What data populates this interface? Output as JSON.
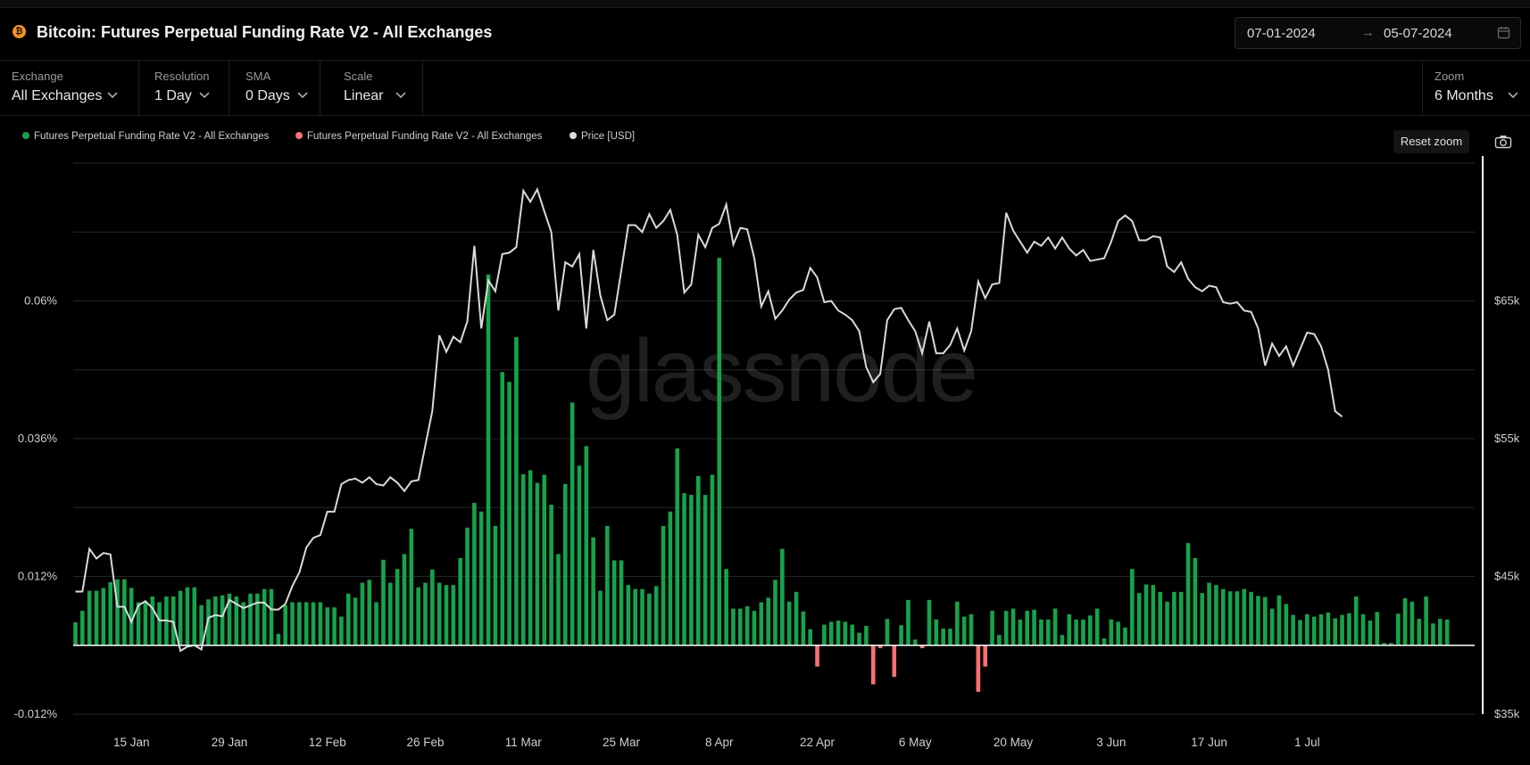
{
  "header": {
    "coin_icon_label": "₿",
    "title": "Bitcoin: Futures Perpetual Funding Rate V2 - All Exchanges",
    "date_from": "07-01-2024",
    "date_arrow": "→",
    "date_to": "05-07-2024",
    "calendar_icon": "calendar-icon"
  },
  "controls": {
    "exchange": {
      "label": "Exchange",
      "value": "All Exchanges"
    },
    "resolution": {
      "label": "Resolution",
      "value": "1 Day"
    },
    "sma": {
      "label": "SMA",
      "value": "0 Days"
    },
    "scale": {
      "label": "Scale",
      "value": "Linear"
    },
    "zoom": {
      "label": "Zoom",
      "value": "6 Months"
    }
  },
  "legend": [
    {
      "label": "Futures Perpetual Funding Rate V2 - All Exchanges",
      "color": "#16a34a"
    },
    {
      "label": "Futures Perpetual Funding Rate V2 - All Exchanges",
      "color": "#f87171"
    },
    {
      "label": "Price [USD]",
      "color": "#d9d9d9"
    }
  ],
  "toolbar": {
    "reset_zoom": "Reset zoom",
    "camera_icon": "camera-icon"
  },
  "watermark": "glassnode",
  "chart_data": {
    "type": "bar",
    "start_date": "2024-01-07",
    "x_tick_labels": [
      "15 Jan",
      "29 Jan",
      "12 Feb",
      "26 Feb",
      "11 Mar",
      "25 Mar",
      "8 Apr",
      "22 Apr",
      "6 May",
      "20 May",
      "3 Jun",
      "17 Jun",
      "1 Jul"
    ],
    "y_left": {
      "ticks": [
        -0.012,
        0.012,
        0.036,
        0.06
      ],
      "tick_labels": [
        "-0.012%",
        "0.012%",
        "0.036%",
        "0.06%"
      ],
      "range": [
        -0.012,
        0.084
      ]
    },
    "y_right": {
      "ticks": [
        35000,
        45000,
        55000,
        65000
      ],
      "tick_labels": [
        "$35k",
        "$45k",
        "$55k",
        "$65k"
      ],
      "range": [
        35000,
        75000
      ]
    },
    "grid": true,
    "series": [
      {
        "name": "Futures Perpetual Funding Rate V2 - All Exchanges",
        "axis": "left",
        "positive_color": "#16a34a",
        "negative_color": "#f87171",
        "values": [
          0.004,
          0.006,
          0.0095,
          0.0095,
          0.01,
          0.011,
          0.0115,
          0.0115,
          0.01,
          0.0075,
          0.0075,
          0.0085,
          0.0075,
          0.0085,
          0.0085,
          0.0095,
          0.0101,
          0.0101,
          0.007,
          0.008,
          0.0085,
          0.0087,
          0.009,
          0.0085,
          0.0075,
          0.009,
          0.009,
          0.0098,
          0.0098,
          0.002,
          0.007,
          0.0075,
          0.0075,
          0.0075,
          0.0075,
          0.0075,
          0.0066,
          0.0066,
          0.005,
          0.009,
          0.0083,
          0.0109,
          0.0114,
          0.0075,
          0.0149,
          0.0109,
          0.0133,
          0.0159,
          0.0203,
          0.0101,
          0.0109,
          0.0132,
          0.0109,
          0.0105,
          0.0105,
          0.0152,
          0.0205,
          0.0248,
          0.0233,
          0.0646,
          0.0208,
          0.0476,
          0.0459,
          0.0537,
          0.0298,
          0.0305,
          0.0283,
          0.0297,
          0.0245,
          0.0159,
          0.0281,
          0.0423,
          0.0313,
          0.0347,
          0.0188,
          0.0095,
          0.0208,
          0.0148,
          0.0148,
          0.0105,
          0.0098,
          0.0098,
          0.009,
          0.0103,
          0.0208,
          0.0233,
          0.0343,
          0.0265,
          0.0262,
          0.0295,
          0.0262,
          0.0297,
          0.0675,
          0.0133,
          0.0064,
          0.0064,
          0.0068,
          0.006,
          0.0075,
          0.0083,
          0.0114,
          0.0168,
          0.0076,
          0.0093,
          0.0059,
          0.0028,
          -0.0037,
          0.0036,
          0.0041,
          0.0043,
          0.0041,
          0.0036,
          0.0022,
          0.0034,
          -0.0068,
          -0.0005,
          0.0046,
          -0.0055,
          0.0035,
          0.0079,
          0.001,
          -0.0005,
          0.0079,
          0.0045,
          0.0029,
          0.0029,
          0.0076,
          0.005,
          0.0054,
          -0.0081,
          -0.0037,
          0.006,
          0.0018,
          0.006,
          0.0064,
          0.0045,
          0.006,
          0.0062,
          0.0045,
          0.0045,
          0.0064,
          0.0018,
          0.0054,
          0.0045,
          0.0045,
          0.0052,
          0.0064,
          0.0012,
          0.0045,
          0.0041,
          0.0031,
          0.0133,
          0.0091,
          0.0106,
          0.0105,
          0.0093,
          0.0076,
          0.0093,
          0.0093,
          0.0178,
          0.0152,
          0.0091,
          0.0109,
          0.0105,
          0.0098,
          0.0094,
          0.0094,
          0.0098,
          0.0093,
          0.0086,
          0.0084,
          0.0064,
          0.0087,
          0.0072,
          0.0053,
          0.0044,
          0.0054,
          0.005,
          0.0054,
          0.0057,
          0.0047,
          0.0053,
          0.0056,
          0.0085,
          0.0054,
          0.0043,
          0.0058,
          0.0004,
          0.0004,
          0.0055,
          0.0082,
          0.0076,
          0.0046,
          0.0085,
          0.0038,
          0.0046,
          0.0045
        ]
      },
      {
        "name": "Price [USD]",
        "axis": "right",
        "color": "#d9d9d9",
        "values": [
          43900,
          43900,
          47000,
          46300,
          46700,
          46600,
          42800,
          42800,
          41700,
          42900,
          43200,
          42700,
          41800,
          41800,
          41700,
          39600,
          39900,
          40000,
          39700,
          42000,
          42200,
          42100,
          43300,
          43000,
          42700,
          42900,
          43100,
          43100,
          42600,
          42600,
          43000,
          44300,
          45300,
          47100,
          47800,
          48000,
          49700,
          49700,
          51700,
          52000,
          52100,
          51800,
          52200,
          51700,
          51600,
          52200,
          51800,
          51200,
          51900,
          52000,
          54500,
          57000,
          62500,
          61300,
          62400,
          62000,
          63500,
          69000,
          63000,
          66500,
          65700,
          68400,
          68500,
          68900,
          73000,
          72200,
          73100,
          71500,
          70000,
          64300,
          67800,
          67500,
          68400,
          63000,
          68700,
          65400,
          63600,
          64000,
          67200,
          70500,
          70500,
          70000,
          71300,
          70300,
          70800,
          71600,
          69800,
          65600,
          66200,
          69800,
          68900,
          70300,
          70600,
          72000,
          69100,
          70300,
          70200,
          68100,
          64600,
          65700,
          63700,
          64300,
          65100,
          65600,
          65800,
          67400,
          66700,
          64900,
          65000,
          64300,
          64000,
          63600,
          62800,
          60200,
          59100,
          59700,
          63600,
          64400,
          64500,
          63600,
          62800,
          61200,
          63500,
          61200,
          61200,
          61800,
          63000,
          61400,
          62800,
          66400,
          65200,
          66200,
          66300,
          71400,
          70100,
          69300,
          68500,
          69300,
          69000,
          69600,
          68800,
          69600,
          68800,
          68300,
          68700,
          67900,
          68000,
          68100,
          69300,
          70800,
          71200,
          70800,
          69400,
          69400,
          69700,
          69600,
          67500,
          67100,
          67800,
          66600,
          66000,
          65700,
          66100,
          66000,
          64900,
          64800,
          64900,
          64300,
          64200,
          63000,
          60300,
          61900,
          61000,
          61700,
          60300,
          61500,
          62700,
          62600,
          61700,
          60000,
          57000,
          56600
        ]
      }
    ]
  }
}
